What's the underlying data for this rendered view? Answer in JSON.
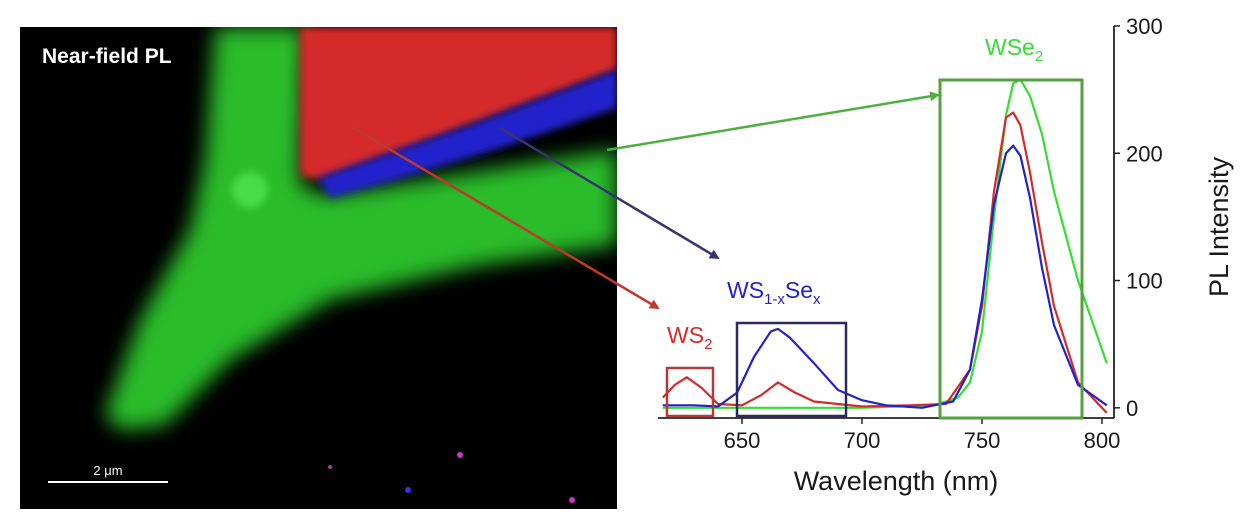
{
  "image_panel": {
    "title": "Near-field PL",
    "scalebar_label": "2 μm"
  },
  "region_labels": {
    "ws2": {
      "main": "WS",
      "sub": "2",
      "color": "#d42a2a"
    },
    "alloy": {
      "main1": "WS",
      "sub1": "1-x",
      "main2": "Se",
      "sub2": "x",
      "color": "#2222cc"
    },
    "wse2": {
      "main": "WSe",
      "sub": "2",
      "color": "#33dd33"
    }
  },
  "colors": {
    "red_region": "#d42a2a",
    "blue_region": "#2222cc",
    "green_region": "#2ecc2e",
    "ws2_box": "#b33a3a",
    "alloy_box": "#2a2a5e",
    "wse2_box": "#55a040"
  },
  "chart_data": {
    "type": "line",
    "xlabel": "Wavelength (nm)",
    "ylabel": "PL Intensity",
    "xlim": [
      615,
      805
    ],
    "ylim": [
      -8,
      300
    ],
    "xticks": [
      650,
      700,
      750,
      800
    ],
    "yticks": [
      0,
      100,
      200,
      300
    ],
    "yaxis_position": "right",
    "series": [
      {
        "color": "#33dd33",
        "x": [
          617,
          650,
          700,
          730,
          740,
          745,
          750,
          755,
          760,
          763,
          766,
          770,
          775,
          780,
          790,
          802
        ],
        "y": [
          0,
          0,
          0,
          2,
          8,
          20,
          60,
          150,
          230,
          255,
          258,
          245,
          215,
          170,
          100,
          35
        ]
      },
      {
        "color": "#d42a2a",
        "x": [
          617,
          622,
          627,
          633,
          640,
          650,
          658,
          665,
          672,
          680,
          690,
          700,
          720,
          735,
          745,
          750,
          755,
          760,
          763,
          766,
          770,
          775,
          780,
          790,
          802
        ],
        "y": [
          8,
          18,
          24,
          16,
          3,
          2,
          10,
          20,
          12,
          5,
          3,
          1,
          2,
          3,
          30,
          80,
          170,
          228,
          232,
          222,
          185,
          130,
          80,
          20,
          -4
        ]
      },
      {
        "color": "#2222cc",
        "x": [
          617,
          630,
          640,
          648,
          655,
          662,
          665,
          670,
          680,
          690,
          700,
          710,
          725,
          738,
          745,
          750,
          755,
          760,
          763,
          766,
          770,
          775,
          780,
          790,
          802
        ],
        "y": [
          2,
          2,
          1,
          12,
          40,
          60,
          62,
          55,
          35,
          14,
          6,
          2,
          0,
          5,
          30,
          85,
          160,
          200,
          206,
          198,
          165,
          110,
          65,
          18,
          2
        ]
      }
    ]
  }
}
